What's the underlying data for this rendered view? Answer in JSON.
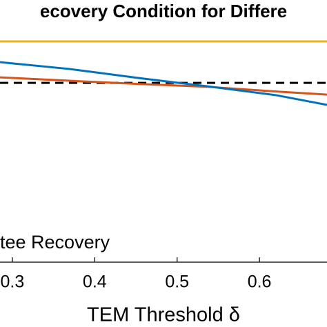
{
  "chart_data": {
    "type": "line",
    "title": "ecovery Condition for Differe",
    "xlabel": "TEM Threshold δ",
    "xlim": [
      0.285,
      0.682
    ],
    "xticks": [
      {
        "value": 0.3,
        "label": "0.3"
      },
      0.4,
      0.5,
      0.6
    ],
    "ylim": [
      0,
      100
    ],
    "x": [
      0.285,
      0.369,
      0.452,
      0.536,
      0.62,
      0.682
    ],
    "series": [
      {
        "color": "#edb120",
        "dash": false,
        "values": [
          84.2,
          84.2,
          84.2,
          84.2,
          84.2,
          84.2
        ]
      },
      {
        "name": "tee Recovery",
        "color": "#000000",
        "dash": true,
        "values": [
          68.4,
          68.4,
          68.4,
          68.4,
          68.4,
          68.4
        ]
      },
      {
        "color": "#d95319",
        "dash": false,
        "values": [
          70.5,
          69.2,
          68.0,
          66.9,
          65.1,
          63.9
        ]
      },
      {
        "color": "#0072bd",
        "dash": false,
        "values": [
          76.3,
          73.7,
          70.3,
          67.1,
          63.7,
          60.0
        ]
      }
    ]
  }
}
